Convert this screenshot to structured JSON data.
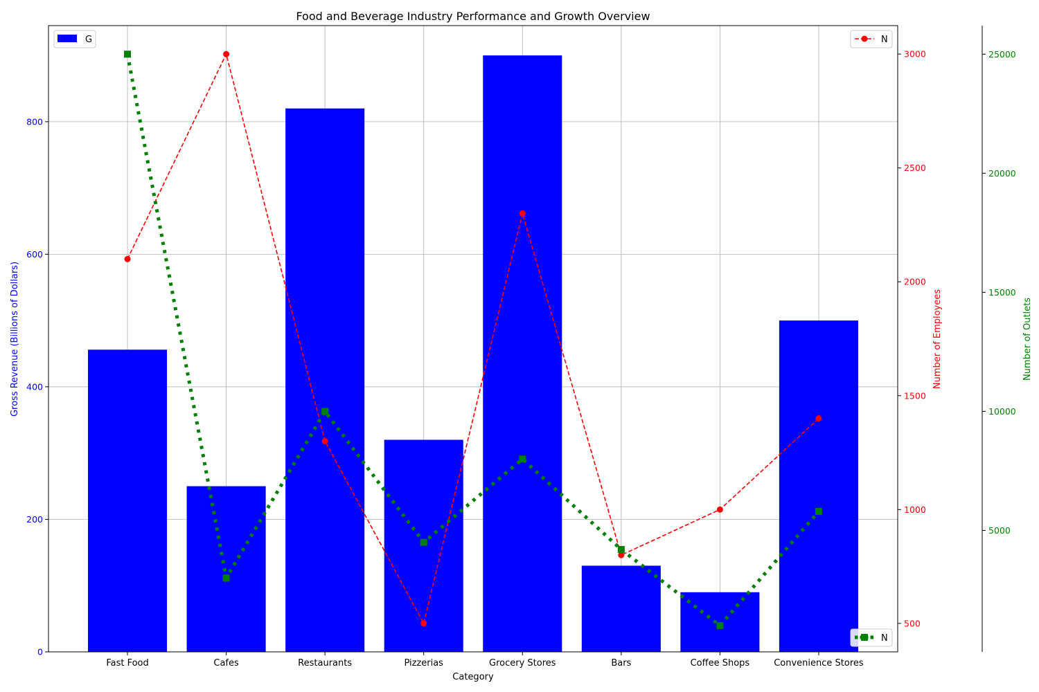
{
  "chart_data": {
    "type": "bar",
    "title": "Food and Beverage Industry Performance and Growth Overview",
    "xlabel": "Category",
    "categories": [
      "Fast Food",
      "Cafes",
      "Restaurants",
      "Pizzerias",
      "Grocery Stores",
      "Bars",
      "Coffee Shops",
      "Convenience Stores"
    ],
    "series": [
      {
        "name": "G",
        "type": "bar",
        "axis": "left",
        "color": "#0000ff",
        "values": [
          456,
          250,
          820,
          320,
          900,
          130,
          90,
          500
        ]
      },
      {
        "name": "N",
        "type": "line",
        "axis": "right",
        "color": "#ff0000",
        "linestyle": "dashed",
        "marker": "circle",
        "values": [
          2100,
          3000,
          1300,
          500,
          2300,
          800,
          1000,
          1400
        ]
      },
      {
        "name": "N",
        "type": "line",
        "axis": "outer-right",
        "color": "#008000",
        "linestyle": "dotted",
        "marker": "square",
        "values": [
          25000,
          3000,
          10000,
          4500,
          8000,
          4200,
          1000,
          5800
        ]
      }
    ],
    "axes": {
      "left": {
        "label": "Gross Revenue (Billions of Dollars)",
        "color": "#0000ff",
        "ylim": [
          0,
          945
        ],
        "ticks": [
          0,
          200,
          400,
          600,
          800
        ],
        "tick_labels": [
          "0",
          "200",
          "400",
          "600",
          "800"
        ]
      },
      "right": {
        "label": "Number of Employees",
        "color": "#ff0000",
        "ylim": [
          375,
          3125
        ],
        "ticks": [
          500,
          1000,
          1500,
          2000,
          2500,
          3000
        ],
        "tick_labels": [
          "500",
          "1000",
          "1500",
          "2000",
          "2500",
          "3000"
        ]
      },
      "outer_right": {
        "label": "Number of Outlets",
        "color": "#008000",
        "ylim": [
          -100,
          26200
        ],
        "ticks": [
          5000,
          10000,
          15000,
          20000,
          25000
        ],
        "tick_labels": [
          "5000",
          "10000",
          "15000",
          "20000",
          "25000"
        ]
      }
    },
    "grid": true,
    "legends": [
      {
        "position": "upper-left",
        "label": "G"
      },
      {
        "position": "upper-right",
        "label": "N"
      },
      {
        "position": "lower-right",
        "label": "N"
      }
    ]
  }
}
